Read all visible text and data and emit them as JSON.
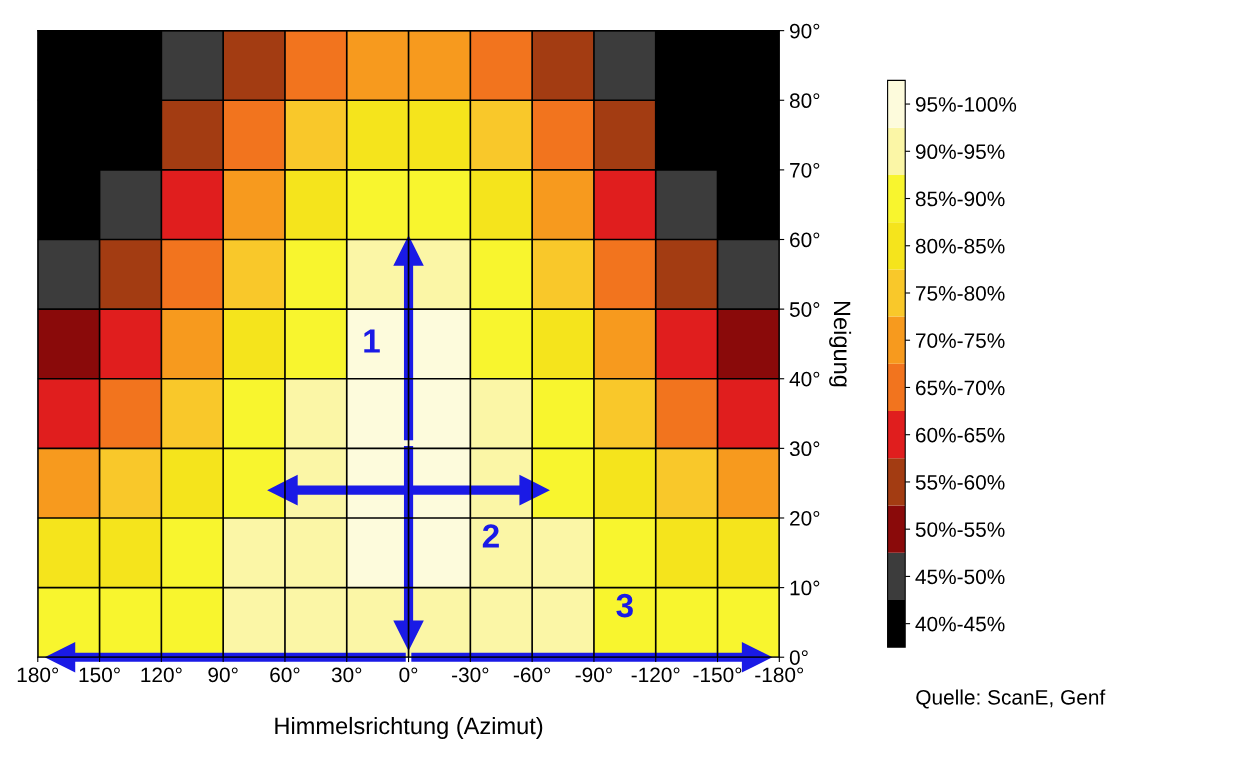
{
  "chart_data": {
    "type": "heatmap",
    "xlabel": "Himmelsrichtung (Azimut)",
    "ylabel": "Neigung",
    "xlim": [
      180,
      -180
    ],
    "xticks": [
      {
        "value": 180,
        "label": "180°"
      },
      {
        "value": 150,
        "label": "150°"
      },
      {
        "value": 120,
        "label": "120°"
      },
      {
        "value": 90,
        "label": "90°"
      },
      {
        "value": 60,
        "label": "60°"
      },
      {
        "value": 30,
        "label": "30°"
      },
      {
        "value": 0,
        "label": "0°"
      },
      {
        "value": -30,
        "label": "-30°"
      },
      {
        "value": -60,
        "label": "-60°"
      },
      {
        "value": -90,
        "label": "-90°"
      },
      {
        "value": -120,
        "label": "-120°"
      },
      {
        "value": -150,
        "label": "-150°"
      },
      {
        "value": -180,
        "label": "-180°"
      }
    ],
    "ylim": [
      0,
      90
    ],
    "yticks": [
      {
        "value": 0,
        "label": "0°"
      },
      {
        "value": 10,
        "label": "10°"
      },
      {
        "value": 20,
        "label": "20°"
      },
      {
        "value": 30,
        "label": "30°"
      },
      {
        "value": 40,
        "label": "40°"
      },
      {
        "value": 50,
        "label": "50°"
      },
      {
        "value": 60,
        "label": "60°"
      },
      {
        "value": 70,
        "label": "70°"
      },
      {
        "value": 80,
        "label": "80°"
      },
      {
        "value": 90,
        "label": "90°"
      }
    ],
    "cells": [
      [
        42.5,
        42.5,
        47.5,
        57.5,
        67.5,
        72.5,
        72.5,
        67.5,
        57.5,
        47.5,
        42.5,
        42.5
      ],
      [
        42.5,
        42.5,
        57.5,
        67.5,
        77.5,
        82.5,
        82.5,
        77.5,
        67.5,
        57.5,
        42.5,
        42.5
      ],
      [
        42.5,
        47.5,
        62.5,
        72.5,
        82.5,
        87.5,
        87.5,
        82.5,
        72.5,
        62.5,
        47.5,
        42.5
      ],
      [
        47.5,
        57.5,
        67.5,
        77.5,
        87.5,
        92.5,
        92.5,
        87.5,
        77.5,
        67.5,
        57.5,
        47.5
      ],
      [
        52.5,
        62.5,
        72.5,
        82.5,
        87.5,
        97.5,
        97.5,
        87.5,
        82.5,
        72.5,
        62.5,
        52.5
      ],
      [
        62.5,
        67.5,
        77.5,
        87.5,
        92.5,
        97.5,
        97.5,
        92.5,
        87.5,
        77.5,
        67.5,
        62.5
      ],
      [
        72.5,
        77.5,
        82.5,
        87.5,
        92.5,
        97.5,
        97.5,
        92.5,
        87.5,
        82.5,
        77.5,
        72.5
      ],
      [
        82.5,
        82.5,
        87.5,
        92.5,
        92.5,
        97.5,
        97.5,
        92.5,
        92.5,
        87.5,
        82.5,
        82.5
      ],
      [
        87.5,
        87.5,
        87.5,
        92.5,
        92.5,
        92.5,
        92.5,
        92.5,
        92.5,
        87.5,
        87.5,
        87.5
      ]
    ],
    "clim": [
      40,
      100
    ],
    "colors": [
      "#000000",
      "#3c3c3c",
      "#8a0a0a",
      "#a33c12",
      "#e01e1e",
      "#f2741e",
      "#f79a1e",
      "#f9c82a",
      "#f5e41c",
      "#f8f52e",
      "#fbf6a6",
      "#fdfbdc"
    ],
    "cticks": [
      {
        "value": 42.5,
        "label": "40%-45%"
      },
      {
        "value": 47.5,
        "label": "45%-50%"
      },
      {
        "value": 52.5,
        "label": "50%-55%"
      },
      {
        "value": 57.5,
        "label": "55%-60%"
      },
      {
        "value": 62.5,
        "label": "60%-65%"
      },
      {
        "value": 67.5,
        "label": "65%-70%"
      },
      {
        "value": 72.5,
        "label": "70%-75%"
      },
      {
        "value": 77.5,
        "label": "75%-80%"
      },
      {
        "value": 82.5,
        "label": "80%-85%"
      },
      {
        "value": 87.5,
        "label": "85%-90%"
      },
      {
        "value": 92.5,
        "label": "90%-95%"
      },
      {
        "value": 97.5,
        "label": "95%-100%"
      }
    ],
    "grid": true,
    "annotations": [
      "1",
      "2",
      "3",
      "Quelle: ScanE, Genf"
    ]
  }
}
